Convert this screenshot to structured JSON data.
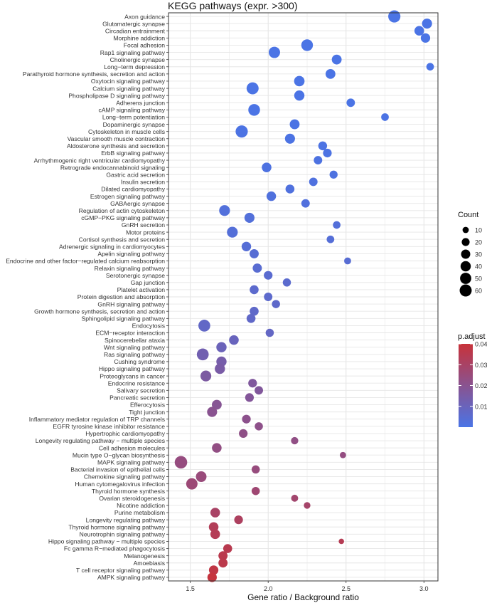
{
  "chart_data": {
    "type": "scatter",
    "title": "KEGG pathways (expr. >300)",
    "xlabel": "Gene ratio / Background ratio",
    "ylabel": "",
    "xlim": [
      1.36,
      3.09
    ],
    "x_ticks": [
      1.5,
      2.0,
      2.5,
      3.0
    ],
    "x_tick_labels": [
      "1.5",
      "2.0",
      "2.5",
      "3.0"
    ],
    "grid": true,
    "size_legend": {
      "title": "Count",
      "values": [
        10,
        20,
        30,
        40,
        50,
        60
      ]
    },
    "color_legend": {
      "title": "p.adjust",
      "values": [
        0.04,
        0.03,
        0.02,
        0.01
      ],
      "labels": [
        "0.04",
        "0.03",
        "0.02",
        "0.01"
      ],
      "low_color": "#4a74e6",
      "high_color": "#c8323a",
      "range": [
        0.0,
        0.04
      ]
    },
    "points": [
      {
        "pathway": "Axon guidance",
        "ratio": 2.81,
        "count": 62,
        "padj": 0.0002
      },
      {
        "pathway": "Glutamatergic synapse",
        "ratio": 3.02,
        "count": 38,
        "padj": 0.0002
      },
      {
        "pathway": "Circadian entrainment",
        "ratio": 2.97,
        "count": 34,
        "padj": 0.0002
      },
      {
        "pathway": "Morphine addiction",
        "ratio": 3.01,
        "count": 32,
        "padj": 0.0002
      },
      {
        "pathway": "Focal adhesion",
        "ratio": 2.25,
        "count": 55,
        "padj": 0.0002
      },
      {
        "pathway": "Rap1 signaling pathway",
        "ratio": 2.04,
        "count": 52,
        "padj": 0.0002
      },
      {
        "pathway": "Cholinergic synapse",
        "ratio": 2.44,
        "count": 36,
        "padj": 0.0002
      },
      {
        "pathway": "Long−term depression",
        "ratio": 3.04,
        "count": 18,
        "padj": 0.0002
      },
      {
        "pathway": "Parathyroid hormone synthesis, secretion and action",
        "ratio": 2.4,
        "count": 36,
        "padj": 0.0002
      },
      {
        "pathway": "Oxytocin signaling pathway",
        "ratio": 2.2,
        "count": 42,
        "padj": 0.0002
      },
      {
        "pathway": "Calcium signaling pathway",
        "ratio": 1.9,
        "count": 60,
        "padj": 0.0002
      },
      {
        "pathway": "Phospholipase D signaling pathway",
        "ratio": 2.2,
        "count": 40,
        "padj": 0.0003
      },
      {
        "pathway": "Adherens junction",
        "ratio": 2.53,
        "count": 24,
        "padj": 0.0003
      },
      {
        "pathway": "cAMP signaling pathway",
        "ratio": 1.91,
        "count": 56,
        "padj": 0.0003
      },
      {
        "pathway": "Long−term potentiation",
        "ratio": 2.75,
        "count": 18,
        "padj": 0.0004
      },
      {
        "pathway": "Dopaminergic synapse",
        "ratio": 2.17,
        "count": 36,
        "padj": 0.0004
      },
      {
        "pathway": "Cytoskeleton in muscle cells",
        "ratio": 1.83,
        "count": 62,
        "padj": 0.0006
      },
      {
        "pathway": "Vascular smooth muscle contraction",
        "ratio": 2.14,
        "count": 38,
        "padj": 0.0006
      },
      {
        "pathway": "Aldosterone synthesis and secretion",
        "ratio": 2.35,
        "count": 27,
        "padj": 0.0008
      },
      {
        "pathway": "ErbB signaling pathway",
        "ratio": 2.38,
        "count": 26,
        "padj": 0.0008
      },
      {
        "pathway": "Arrhythmogenic right ventricular cardiomyopathy",
        "ratio": 2.32,
        "count": 24,
        "padj": 0.0011
      },
      {
        "pathway": "Retrograde endocannabinoid signaling",
        "ratio": 1.99,
        "count": 34,
        "padj": 0.0012
      },
      {
        "pathway": "Gastric acid secretion",
        "ratio": 2.42,
        "count": 21,
        "padj": 0.0014
      },
      {
        "pathway": "Insulin secretion",
        "ratio": 2.29,
        "count": 24,
        "padj": 0.0016
      },
      {
        "pathway": "Dilated cardiomyopathy",
        "ratio": 2.14,
        "count": 28,
        "padj": 0.0018
      },
      {
        "pathway": "Estrogen signaling pathway",
        "ratio": 2.02,
        "count": 33,
        "padj": 0.002
      },
      {
        "pathway": "GABAergic synapse",
        "ratio": 2.24,
        "count": 24,
        "padj": 0.0022
      },
      {
        "pathway": "Regulation of actin cytoskeleton",
        "ratio": 1.72,
        "count": 46,
        "padj": 0.0025
      },
      {
        "pathway": "cGMP−PKG signaling pathway",
        "ratio": 1.88,
        "count": 38,
        "padj": 0.0027
      },
      {
        "pathway": "GnRH secretion",
        "ratio": 2.44,
        "count": 18,
        "padj": 0.003
      },
      {
        "pathway": "Motor proteins",
        "ratio": 1.77,
        "count": 46,
        "padj": 0.0033
      },
      {
        "pathway": "Cortisol synthesis and secretion",
        "ratio": 2.4,
        "count": 18,
        "padj": 0.0035
      },
      {
        "pathway": "Adrenergic signaling in cardiomyocytes",
        "ratio": 1.86,
        "count": 33,
        "padj": 0.0038
      },
      {
        "pathway": "Apelin signaling pathway",
        "ratio": 1.91,
        "count": 30,
        "padj": 0.0042
      },
      {
        "pathway": "Endocrine and other factor−regulated calcium reabsorption",
        "ratio": 2.51,
        "count": 14,
        "padj": 0.0045
      },
      {
        "pathway": "Relaxin signaling pathway",
        "ratio": 1.93,
        "count": 30,
        "padj": 0.0048
      },
      {
        "pathway": "Serotonergic synapse",
        "ratio": 2.0,
        "count": 26,
        "padj": 0.0052
      },
      {
        "pathway": "Gap junction",
        "ratio": 2.12,
        "count": 22,
        "padj": 0.0055
      },
      {
        "pathway": "Platelet activation",
        "ratio": 1.91,
        "count": 28,
        "padj": 0.0058
      },
      {
        "pathway": "Protein digestion and absorption",
        "ratio": 2.0,
        "count": 24,
        "padj": 0.006
      },
      {
        "pathway": "GnRH signaling pathway",
        "ratio": 2.05,
        "count": 22,
        "padj": 0.0065
      },
      {
        "pathway": "Growth hormone synthesis, secretion and action",
        "ratio": 1.91,
        "count": 28,
        "padj": 0.0068
      },
      {
        "pathway": "Sphingolipid signaling pathway",
        "ratio": 1.89,
        "count": 28,
        "padj": 0.007
      },
      {
        "pathway": "Endocytosis",
        "ratio": 1.59,
        "count": 58,
        "padj": 0.0075
      },
      {
        "pathway": "ECM−receptor interaction",
        "ratio": 2.01,
        "count": 22,
        "padj": 0.008
      },
      {
        "pathway": "Spinocerebellar ataxia",
        "ratio": 1.78,
        "count": 34,
        "padj": 0.0095
      },
      {
        "pathway": "Wnt signaling pathway",
        "ratio": 1.7,
        "count": 40,
        "padj": 0.0105
      },
      {
        "pathway": "Ras signaling pathway",
        "ratio": 1.58,
        "count": 58,
        "padj": 0.0125
      },
      {
        "pathway": "Cushing syndrome",
        "ratio": 1.7,
        "count": 40,
        "padj": 0.014
      },
      {
        "pathway": "Hippo signaling pathway",
        "ratio": 1.69,
        "count": 40,
        "padj": 0.015
      },
      {
        "pathway": "Proteoglycans in cancer",
        "ratio": 1.6,
        "count": 46,
        "padj": 0.016
      },
      {
        "pathway": "Endocrine resistance",
        "ratio": 1.9,
        "count": 26,
        "padj": 0.017
      },
      {
        "pathway": "Salivary secretion",
        "ratio": 1.94,
        "count": 24,
        "padj": 0.0175
      },
      {
        "pathway": "Pancreatic secretion",
        "ratio": 1.88,
        "count": 26,
        "padj": 0.018
      },
      {
        "pathway": "Efferocytosis",
        "ratio": 1.67,
        "count": 36,
        "padj": 0.019
      },
      {
        "pathway": "Tight junction",
        "ratio": 1.64,
        "count": 38,
        "padj": 0.02
      },
      {
        "pathway": "Inflammatory mediator regulation of TRP channels",
        "ratio": 1.86,
        "count": 26,
        "padj": 0.021
      },
      {
        "pathway": "EGFR tyrosine kinase inhibitor resistance",
        "ratio": 1.94,
        "count": 22,
        "padj": 0.0215
      },
      {
        "pathway": "Hypertrophic cardiomyopathy",
        "ratio": 1.84,
        "count": 26,
        "padj": 0.022
      },
      {
        "pathway": "Longevity regulating pathway − multiple species",
        "ratio": 2.17,
        "count": 16,
        "padj": 0.0225
      },
      {
        "pathway": "Cell adhesion molecules",
        "ratio": 1.67,
        "count": 34,
        "padj": 0.023
      },
      {
        "pathway": "Mucin type O−glycan biosynthesis",
        "ratio": 2.48,
        "count": 10,
        "padj": 0.0235
      },
      {
        "pathway": "MAPK signaling pathway",
        "ratio": 1.44,
        "count": 66,
        "padj": 0.024
      },
      {
        "pathway": "Bacterial invasion of epithelial cells",
        "ratio": 1.92,
        "count": 22,
        "padj": 0.0245
      },
      {
        "pathway": "Chemokine signaling pathway",
        "ratio": 1.57,
        "count": 44,
        "padj": 0.025
      },
      {
        "pathway": "Human cytomegalovirus infection",
        "ratio": 1.51,
        "count": 52,
        "padj": 0.026
      },
      {
        "pathway": "Thyroid hormone synthesis",
        "ratio": 1.92,
        "count": 22,
        "padj": 0.027
      },
      {
        "pathway": "Ovarian steroidogenesis",
        "ratio": 2.17,
        "count": 14,
        "padj": 0.028
      },
      {
        "pathway": "Nicotine addiction",
        "ratio": 2.25,
        "count": 12,
        "padj": 0.029
      },
      {
        "pathway": "Purine metabolism",
        "ratio": 1.66,
        "count": 34,
        "padj": 0.03
      },
      {
        "pathway": "Longevity regulating pathway",
        "ratio": 1.81,
        "count": 26,
        "padj": 0.0315
      },
      {
        "pathway": "Thyroid hormone signaling pathway",
        "ratio": 1.65,
        "count": 34,
        "padj": 0.033
      },
      {
        "pathway": "Neurotrophin signaling pathway",
        "ratio": 1.66,
        "count": 34,
        "padj": 0.0335
      },
      {
        "pathway": "Hippo signaling pathway − multiple species",
        "ratio": 2.47,
        "count": 6,
        "padj": 0.034
      },
      {
        "pathway": "Fc gamma R−mediated phagocytosis",
        "ratio": 1.74,
        "count": 28,
        "padj": 0.035
      },
      {
        "pathway": "Melanogenesis",
        "ratio": 1.71,
        "count": 30,
        "padj": 0.0355
      },
      {
        "pathway": "Amoebiasis",
        "ratio": 1.71,
        "count": 30,
        "padj": 0.036
      },
      {
        "pathway": "T cell receptor signaling pathway",
        "ratio": 1.65,
        "count": 32,
        "padj": 0.0375
      },
      {
        "pathway": "AMPK signaling pathway",
        "ratio": 1.64,
        "count": 32,
        "padj": 0.039
      }
    ]
  }
}
